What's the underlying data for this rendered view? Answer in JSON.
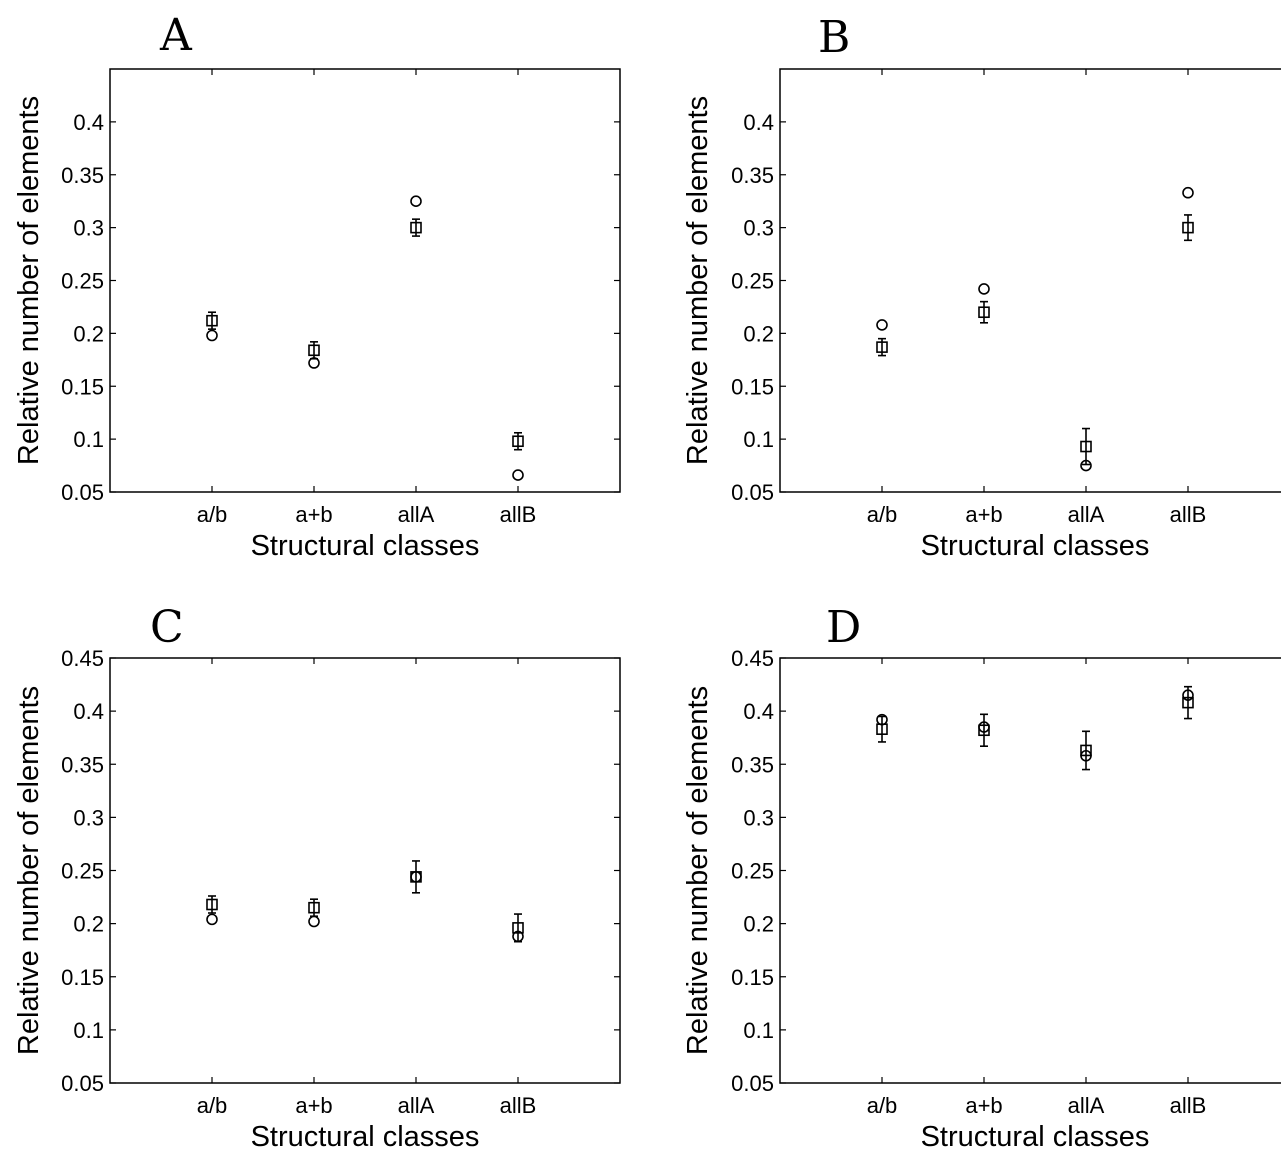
{
  "chart_data": [
    {
      "type": "scatter",
      "panel": "A",
      "xlabel": "Structural classes",
      "ylabel": "Relative number of elements",
      "categories": [
        "a/b",
        "a+b",
        "allA",
        "allB"
      ],
      "ylim": [
        0.05,
        0.45
      ],
      "yticks": [
        "0.05",
        "0.1",
        "0.15",
        "0.2",
        "0.25",
        "0.3",
        "0.35",
        "0.4"
      ],
      "series": [
        {
          "marker": "square",
          "values": [
            0.212,
            0.184,
            0.3,
            0.098
          ],
          "errors": [
            0.008,
            0.008,
            0.008,
            0.008
          ]
        },
        {
          "marker": "circle",
          "values": [
            0.198,
            0.172,
            0.325,
            0.066
          ]
        }
      ]
    },
    {
      "type": "scatter",
      "panel": "B",
      "xlabel": "Structural classes",
      "ylabel": "Relative number of elements",
      "categories": [
        "a/b",
        "a+b",
        "allA",
        "allB"
      ],
      "ylim": [
        0.05,
        0.45
      ],
      "yticks": [
        "0.05",
        "0.1",
        "0.15",
        "0.2",
        "0.25",
        "0.3",
        "0.35",
        "0.4"
      ],
      "series": [
        {
          "marker": "square",
          "values": [
            0.187,
            0.22,
            0.093,
            0.3
          ],
          "errors": [
            0.008,
            0.01,
            0.017,
            0.012
          ]
        },
        {
          "marker": "circle",
          "values": [
            0.208,
            0.242,
            0.075,
            0.333
          ]
        }
      ]
    },
    {
      "type": "scatter",
      "panel": "C",
      "xlabel": "Structural classes",
      "ylabel": "Relative number of elements",
      "categories": [
        "a/b",
        "a+b",
        "allA",
        "allB"
      ],
      "ylim": [
        0.05,
        0.45
      ],
      "yticks": [
        "0.05",
        "0.1",
        "0.15",
        "0.2",
        "0.25",
        "0.3",
        "0.35",
        "0.4",
        "0.45"
      ],
      "series": [
        {
          "marker": "square",
          "values": [
            0.218,
            0.215,
            0.244,
            0.196
          ],
          "errors": [
            0.008,
            0.008,
            0.015,
            0.013
          ]
        },
        {
          "marker": "circle",
          "values": [
            0.204,
            0.202,
            0.244,
            0.188
          ]
        }
      ]
    },
    {
      "type": "scatter",
      "panel": "D",
      "xlabel": "Structural classes",
      "ylabel": "Relative number of elements",
      "categories": [
        "a/b",
        "a+b",
        "allA",
        "allB"
      ],
      "ylim": [
        0.05,
        0.45
      ],
      "yticks": [
        "0.05",
        "0.1",
        "0.15",
        "0.2",
        "0.25",
        "0.3",
        "0.35",
        "0.4",
        "0.45"
      ],
      "series": [
        {
          "marker": "square",
          "values": [
            0.383,
            0.382,
            0.363,
            0.408
          ],
          "errors": [
            0.012,
            0.015,
            0.018,
            0.015
          ]
        },
        {
          "marker": "circle",
          "values": [
            0.392,
            0.385,
            0.358,
            0.415
          ]
        }
      ]
    }
  ]
}
